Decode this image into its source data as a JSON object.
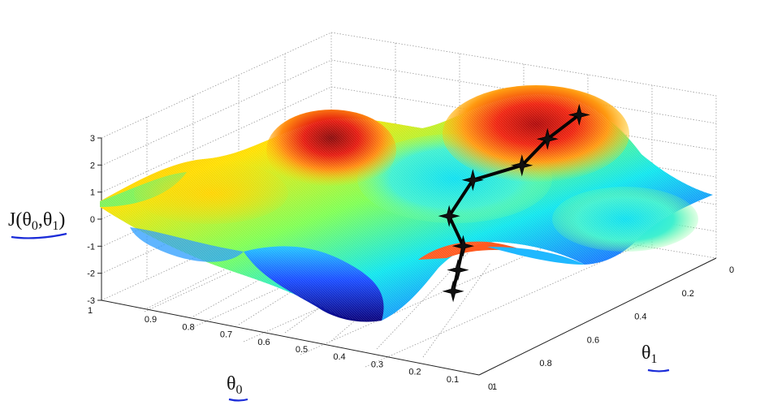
{
  "chart_data": {
    "type": "surface",
    "zlabel": "J(θ0,θ1)",
    "zlabel_main": "J(θ",
    "zlabel_sub0": "0",
    "zlabel_mid": ",θ",
    "zlabel_sub1": "1",
    "zlabel_end": ")",
    "xlabel_main": "θ",
    "xlabel_sub": "0",
    "ylabel_main": "θ",
    "ylabel_sub": "1",
    "theta0_ticks": [
      "0.9",
      "0.8",
      "0.7",
      "0.6",
      "0.5",
      "0.4",
      "0.3",
      "0.2",
      "0.1",
      "0"
    ],
    "theta1_ticks": [
      "0",
      "0.2",
      "0.4",
      "0.6",
      "0.8",
      "1"
    ],
    "z_ticks": [
      "3",
      "2",
      "1",
      "0",
      "-1",
      "-2",
      "-3"
    ],
    "theta0_range": [
      0,
      1
    ],
    "theta1_range": [
      0,
      1
    ],
    "z_range": [
      -3,
      3
    ],
    "grid": true,
    "colormap": "jet",
    "descent_path": [
      {
        "theta0": 0.3,
        "theta1": 0.1,
        "J": 1.9
      },
      {
        "theta0": 0.34,
        "theta1": 0.17,
        "J": 1.2
      },
      {
        "theta0": 0.37,
        "theta1": 0.23,
        "J": 0.4
      },
      {
        "theta0": 0.5,
        "theta1": 0.23,
        "J": -0.5
      },
      {
        "theta0": 0.5,
        "theta1": 0.33,
        "J": -1.4
      },
      {
        "theta0": 0.4,
        "theta1": 0.43,
        "J": -1.8
      },
      {
        "theta0": 0.37,
        "theta1": 0.5,
        "J": -2.3
      },
      {
        "theta0": 0.37,
        "theta1": 0.52,
        "J": -3.0
      }
    ]
  },
  "annotation_color": "#1a2bd8"
}
